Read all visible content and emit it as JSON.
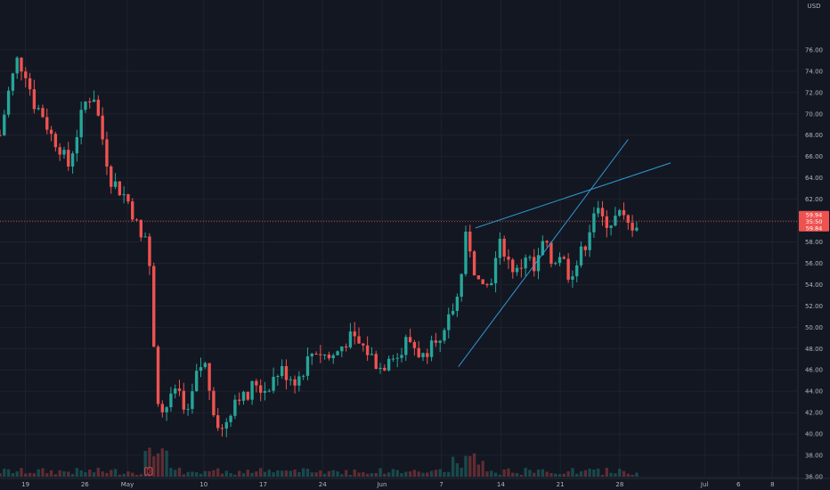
{
  "chart_data": {
    "type": "candlestick",
    "y_axis": {
      "position": "right",
      "ylim": [
        36,
        80.5
      ],
      "ticks": [
        36,
        38,
        40,
        42,
        44,
        46,
        48,
        50,
        52,
        54,
        56,
        58,
        60,
        62,
        64,
        66,
        68,
        70,
        72,
        74,
        76
      ],
      "tick_labels": [
        "36.00",
        "38.00",
        "40.00",
        "42.00",
        "44.00",
        "46.00",
        "48.00",
        "50.00",
        "52.00",
        "54.00",
        "56.00",
        "58.00",
        "60.00",
        "62.00",
        "64.00",
        "66.00",
        "68.00",
        "70.00",
        "72.00",
        "74.00",
        "76.00"
      ],
      "top_label": "USD"
    },
    "x_axis": {
      "day_range": [
        -3,
        91
      ],
      "ticks": [
        {
          "day": 0,
          "label": "19"
        },
        {
          "day": 7,
          "label": "26"
        },
        {
          "day": 12,
          "label": "May"
        },
        {
          "day": 21,
          "label": "10"
        },
        {
          "day": 28,
          "label": "17"
        },
        {
          "day": 35,
          "label": "24"
        },
        {
          "day": 42,
          "label": "Jun"
        },
        {
          "day": 49,
          "label": "7"
        },
        {
          "day": 56,
          "label": "14"
        },
        {
          "day": 63,
          "label": "21"
        },
        {
          "day": 70,
          "label": "28"
        },
        {
          "day": 80,
          "label": "Jul"
        },
        {
          "day": 84,
          "label": "6"
        },
        {
          "day": 88,
          "label": "8"
        }
      ]
    },
    "grid": true,
    "colors": {
      "up": "#26a69a",
      "down": "#ef5350",
      "trendline": "#2f9ad6",
      "price_line": "#ef5350",
      "price_label_bg": "#ef5350",
      "grid": "#1e222d",
      "background": "#131722"
    },
    "price_line": {
      "value": 59.9
    },
    "price_labels": [
      "59.94",
      "35:50",
      "59.84"
    ],
    "marker_label": "D",
    "trendlines": [
      {
        "from": {
          "day": 53,
          "value": 59.3
        },
        "to": {
          "day": 76,
          "value": 65.4
        }
      },
      {
        "from": {
          "day": 51,
          "value": 46.3
        },
        "to": {
          "day": 71,
          "value": 67.6
        }
      }
    ],
    "series": {
      "anchors_day": [
        -3,
        -2,
        -1,
        0,
        1,
        2,
        3,
        4,
        5,
        6,
        7,
        8,
        9,
        10,
        11,
        12,
        13,
        13.5,
        14,
        14.5,
        15,
        15.5,
        16,
        17,
        18,
        19,
        20,
        21,
        22,
        23,
        24,
        25,
        26,
        27,
        28,
        30,
        32,
        34,
        36,
        38,
        40,
        41,
        42,
        43,
        44,
        45,
        46,
        47,
        48,
        49,
        50,
        51,
        51.5,
        52,
        52.5,
        53,
        54,
        55,
        56,
        57,
        58,
        59,
        60,
        61,
        62,
        63,
        64,
        65,
        66,
        67,
        68,
        69,
        70,
        71,
        72
      ],
      "anchors_value": [
        68,
        72,
        75,
        74,
        71,
        70,
        68,
        67,
        65,
        68,
        71,
        72,
        68,
        64,
        63,
        62,
        60,
        58,
        59,
        57,
        50,
        44,
        42,
        43,
        44,
        41,
        45,
        47,
        43,
        40,
        42,
        44,
        43,
        45,
        44,
        46,
        45,
        48,
        47,
        49,
        48,
        47,
        46,
        48,
        47,
        49,
        48,
        47,
        50,
        48,
        51,
        53,
        56,
        59,
        57,
        55,
        53,
        55,
        58,
        56,
        55,
        57,
        55,
        58,
        56,
        57,
        55,
        56,
        58,
        61,
        60,
        59.9,
        60.5,
        59.5,
        59.8
      ],
      "count": 150
    }
  }
}
